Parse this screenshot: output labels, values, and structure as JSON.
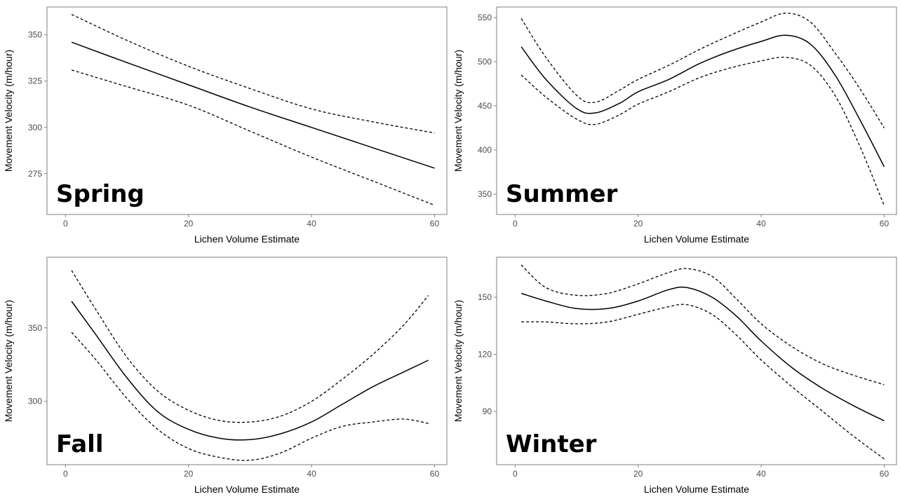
{
  "chart_data": [
    {
      "type": "line",
      "panel_label": "Spring",
      "xlabel": "Lichen Volume Estimate",
      "ylabel": "Movement Velocity (m/hour)",
      "xlim": [
        -3,
        62
      ],
      "ylim": [
        253,
        365
      ],
      "xticks": [
        0,
        20,
        40,
        60
      ],
      "yticks": [
        275,
        300,
        325,
        350
      ],
      "x": [
        1,
        10,
        20,
        30,
        40,
        50,
        60
      ],
      "series": [
        {
          "role": "fit",
          "values": [
            346,
            335,
            323,
            311,
            300,
            289,
            278
          ]
        },
        {
          "role": "upper",
          "values": [
            361,
            347,
            333,
            321,
            310,
            303,
            297
          ]
        },
        {
          "role": "lower",
          "values": [
            331,
            322,
            312,
            298,
            284,
            271,
            258
          ]
        }
      ]
    },
    {
      "type": "line",
      "panel_label": "Summer",
      "xlabel": "Lichen Volume Estimate",
      "ylabel": "Movement Velocity (m/hour)",
      "xlim": [
        -3,
        62
      ],
      "ylim": [
        327,
        562
      ],
      "xticks": [
        0,
        20,
        40,
        60
      ],
      "yticks": [
        350,
        400,
        450,
        500,
        550
      ],
      "x": [
        1,
        5,
        10,
        13,
        17,
        20,
        25,
        30,
        35,
        40,
        44,
        48,
        52,
        56,
        60
      ],
      "series": [
        {
          "role": "fit",
          "values": [
            517,
            480,
            447,
            442,
            453,
            466,
            480,
            498,
            512,
            523,
            530,
            520,
            485,
            435,
            381
          ]
        },
        {
          "role": "upper",
          "values": [
            549,
            505,
            462,
            454,
            468,
            480,
            496,
            514,
            530,
            545,
            555,
            545,
            510,
            470,
            425
          ]
        },
        {
          "role": "lower",
          "values": [
            485,
            460,
            435,
            429,
            440,
            452,
            466,
            482,
            493,
            501,
            505,
            496,
            462,
            405,
            337
          ]
        }
      ]
    },
    {
      "type": "line",
      "panel_label": "Fall",
      "xlabel": "Lichen Volume Estimate",
      "ylabel": "Movement Velocity (m/hour)",
      "xlim": [
        -3,
        62
      ],
      "ylim": [
        257,
        398
      ],
      "xticks": [
        0,
        20,
        40,
        60
      ],
      "yticks": [
        300,
        350
      ],
      "x": [
        1,
        5,
        10,
        15,
        20,
        25,
        30,
        35,
        40,
        45,
        50,
        55,
        59
      ],
      "series": [
        {
          "role": "fit",
          "values": [
            368,
            345,
            316,
            293,
            281,
            275,
            274,
            278,
            286,
            298,
            310,
            320,
            328
          ]
        },
        {
          "role": "upper",
          "values": [
            389,
            362,
            330,
            307,
            294,
            287,
            286,
            290,
            300,
            315,
            332,
            352,
            372
          ]
        },
        {
          "role": "lower",
          "values": [
            347,
            328,
            302,
            281,
            268,
            262,
            260,
            265,
            275,
            283,
            286,
            288,
            285
          ]
        }
      ]
    },
    {
      "type": "line",
      "panel_label": "Winter",
      "xlabel": "Lichen Volume Estimate",
      "ylabel": "Movement Velocity (m/hour)",
      "xlim": [
        -3,
        62
      ],
      "ylim": [
        62,
        171
      ],
      "xticks": [
        0,
        20,
        40,
        60
      ],
      "yticks": [
        90,
        120,
        150
      ],
      "x": [
        1,
        5,
        10,
        15,
        20,
        25,
        28,
        32,
        36,
        40,
        45,
        50,
        55,
        60
      ],
      "series": [
        {
          "role": "fit",
          "values": [
            152,
            148,
            144,
            144,
            148,
            154,
            155,
            150,
            140,
            127,
            113,
            102,
            93,
            85
          ]
        },
        {
          "role": "upper",
          "values": [
            167,
            155,
            151,
            152,
            157,
            163,
            165,
            161,
            149,
            136,
            124,
            115,
            109,
            104
          ]
        },
        {
          "role": "lower",
          "values": [
            137,
            137,
            136,
            137,
            141,
            145,
            146,
            141,
            130,
            117,
            103,
            90,
            77,
            65
          ]
        }
      ]
    }
  ]
}
